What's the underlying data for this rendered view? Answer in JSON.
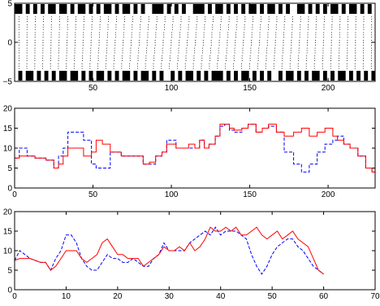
{
  "chart_data": [
    {
      "type": "field",
      "title": "",
      "xlabel": "",
      "ylabel": "",
      "xlim": [
        0,
        230
      ],
      "ylim": [
        -5,
        5
      ],
      "x_ticks": [
        50,
        100,
        150,
        200
      ],
      "x_tick_labels": [
        "50",
        "100",
        "150",
        "200"
      ],
      "y_ticks": [
        5,
        0,
        -5
      ],
      "y_tick_labels": [
        "5",
        "0",
        "−5"
      ],
      "grid": false,
      "top_barcode_pattern": "1101010101101101011010101101011010100111010101001110101101010101101011010100110101010110101101010",
      "bottom_barcode_pattern": "0101101010101101101010110101011010110101001010110101011101010110101010010110101011010101101010101",
      "field": {
        "rows": [
          4,
          3,
          2,
          1,
          0,
          -1,
          -2,
          -3,
          -4
        ],
        "columns": 45,
        "dot_color": "#000000",
        "description_shift": "columns shear progressively along x"
      }
    },
    {
      "type": "line",
      "title": "",
      "xlabel": "",
      "ylabel": "",
      "xlim": [
        0,
        230
      ],
      "ylim": [
        0,
        20
      ],
      "x_ticks": [
        0,
        50,
        100,
        150,
        200
      ],
      "x_tick_labels": [
        "0",
        "50",
        "100",
        "150",
        "200"
      ],
      "y_ticks": [
        0,
        5,
        10,
        15,
        20
      ],
      "y_tick_labels": [
        "0",
        "5",
        "10",
        "15",
        "20"
      ],
      "grid": false,
      "series": [
        {
          "color": "#ff0000",
          "style": "solid",
          "step": true,
          "x": [
            0,
            3,
            8,
            13,
            20,
            25,
            28,
            31,
            34,
            37,
            40,
            44,
            49,
            52,
            56,
            61,
            64,
            68,
            72,
            77,
            82,
            86,
            90,
            94,
            97,
            103,
            107,
            111,
            115,
            118,
            121,
            124,
            128,
            131,
            134,
            137,
            140,
            145,
            149,
            154,
            158,
            162,
            167,
            172,
            178,
            183,
            188,
            193,
            198,
            203,
            206,
            210,
            214,
            219,
            224,
            228
          ],
          "y": [
            7.5,
            8,
            8,
            7.5,
            7,
            5,
            6,
            8,
            10,
            10,
            10,
            8,
            9,
            12,
            11,
            9,
            9,
            8,
            8,
            8,
            6,
            6.5,
            8,
            9,
            11,
            10,
            10,
            11,
            10,
            12,
            10,
            11,
            13,
            16,
            16,
            15,
            14.5,
            15,
            16,
            14,
            15,
            16,
            14,
            13,
            14,
            15,
            13,
            14,
            15,
            13,
            12,
            11,
            10,
            8,
            5,
            4
          ]
        },
        {
          "color": "#0000ff",
          "style": "dashed",
          "step": true,
          "x": [
            0,
            3,
            8,
            13,
            20,
            25,
            28,
            31,
            34,
            40,
            44,
            49,
            52,
            56,
            61,
            64,
            68,
            72,
            77,
            82,
            86,
            90,
            94,
            97,
            103,
            107,
            111,
            115,
            118,
            121,
            124,
            128,
            131,
            134,
            137,
            140,
            145,
            149,
            154,
            158,
            162,
            167,
            172,
            178,
            183,
            188,
            193,
            198,
            203,
            206,
            210,
            214,
            219,
            224,
            228
          ],
          "y": [
            7.5,
            10,
            8,
            7.5,
            7,
            5,
            8,
            10,
            14,
            14,
            12,
            6,
            5,
            5,
            9,
            9,
            8,
            8,
            8,
            6,
            6,
            8,
            9,
            12,
            10,
            10,
            10,
            10,
            12,
            10,
            11,
            13,
            15.5,
            16,
            14.5,
            14,
            15,
            16,
            14,
            15,
            15.5,
            14,
            9,
            6,
            4,
            6,
            9,
            11,
            12,
            13,
            11,
            10,
            8,
            5,
            4
          ]
        }
      ]
    },
    {
      "type": "line",
      "title": "",
      "xlabel": "",
      "ylabel": "",
      "xlim": [
        0,
        70
      ],
      "ylim": [
        0,
        20
      ],
      "x_ticks": [
        0,
        10,
        20,
        30,
        40,
        50,
        60,
        70
      ],
      "x_tick_labels": [
        "0",
        "10",
        "20",
        "30",
        "40",
        "50",
        "60",
        "70"
      ],
      "y_ticks": [
        0,
        5,
        10,
        15,
        20
      ],
      "y_tick_labels": [
        "0",
        "5",
        "10",
        "15",
        "20"
      ],
      "grid": false,
      "series": [
        {
          "color": "#ff0000",
          "style": "solid",
          "x": [
            0,
            1,
            2,
            3,
            4,
            5,
            6,
            7,
            8,
            9,
            10,
            11,
            12,
            13,
            14,
            15,
            16,
            17,
            18,
            19,
            20,
            21,
            22,
            23,
            24,
            25,
            26,
            27,
            28,
            29,
            30,
            31,
            32,
            33,
            34,
            35,
            36,
            37,
            38,
            39,
            40,
            41,
            42,
            43,
            44,
            45,
            46,
            47,
            48,
            49,
            50,
            51,
            52,
            53,
            54,
            55,
            56,
            57,
            58,
            59,
            60
          ],
          "y": [
            7.5,
            8,
            8,
            8,
            7.5,
            7,
            7,
            5,
            6,
            8,
            10,
            10,
            10,
            8,
            7,
            8,
            9,
            12,
            13,
            11,
            9,
            9,
            8,
            8,
            8,
            6,
            7,
            8,
            9,
            11,
            10,
            10,
            11,
            10,
            12,
            10,
            11,
            13,
            16,
            15,
            15,
            16,
            15,
            16,
            14,
            14,
            15,
            16,
            14,
            13,
            14,
            15,
            13,
            14,
            15,
            13,
            12,
            11,
            8,
            5,
            4
          ]
        },
        {
          "color": "#0000ff",
          "style": "dashed",
          "x": [
            0,
            1,
            2,
            3,
            4,
            5,
            6,
            7,
            8,
            9,
            10,
            11,
            12,
            13,
            14,
            15,
            16,
            17,
            18,
            19,
            20,
            21,
            22,
            23,
            24,
            25,
            26,
            27,
            28,
            29,
            30,
            31,
            32,
            33,
            34,
            35,
            36,
            37,
            38,
            39,
            40,
            41,
            42,
            43,
            44,
            45,
            46,
            47,
            48,
            49,
            50,
            51,
            52,
            53,
            54,
            55,
            56,
            57,
            58,
            59,
            60
          ],
          "y": [
            7.5,
            10,
            9,
            8,
            7.5,
            7,
            7,
            5,
            8,
            10,
            14,
            14,
            12,
            8,
            6,
            5,
            5,
            7,
            9,
            8,
            8,
            7,
            7,
            8,
            7,
            6,
            6,
            8,
            9,
            12,
            10,
            10,
            10,
            10,
            12,
            13,
            14,
            15,
            14,
            16,
            14,
            15,
            15,
            15,
            14,
            13,
            9,
            6,
            4,
            6,
            9,
            11,
            12,
            13,
            13,
            11,
            10,
            8,
            6,
            5,
            4
          ]
        }
      ]
    }
  ]
}
